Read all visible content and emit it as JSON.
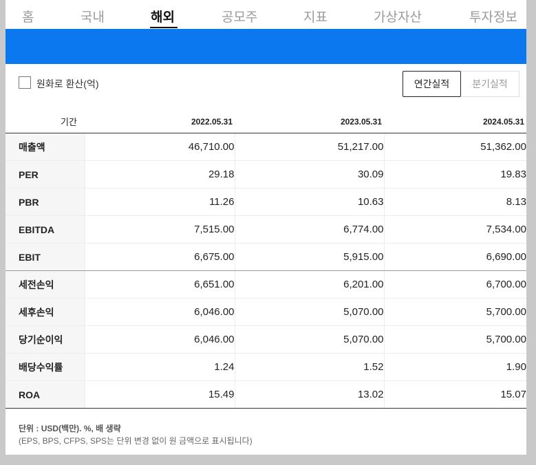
{
  "nav": {
    "items": [
      "홈",
      "국내",
      "해외",
      "공모주",
      "지표",
      "가상자산",
      "투자정보"
    ],
    "active_index": 2
  },
  "options": {
    "currency_checkbox_label": "원화로 환산(억)",
    "currency_checked": false,
    "annual_label": "연간실적",
    "quarter_label": "분기실적",
    "selected": "annual"
  },
  "table": {
    "header_label": "기간",
    "columns": [
      "2022.05.31",
      "2023.05.31",
      "2024.05.31"
    ],
    "rows": [
      {
        "label": "매출액",
        "values": [
          "46,710.00",
          "51,217.00",
          "51,362.00"
        ]
      },
      {
        "label": "PER",
        "values": [
          "29.18",
          "30.09",
          "19.83"
        ]
      },
      {
        "label": "PBR",
        "values": [
          "11.26",
          "10.63",
          "8.13"
        ]
      },
      {
        "label": "EBITDA",
        "values": [
          "7,515.00",
          "6,774.00",
          "7,534.00"
        ]
      },
      {
        "label": "EBIT",
        "values": [
          "6,675.00",
          "5,915.00",
          "6,690.00"
        ]
      },
      {
        "label": "세전손익",
        "values": [
          "6,651.00",
          "6,201.00",
          "6,700.00"
        ]
      },
      {
        "label": "세후손익",
        "values": [
          "6,046.00",
          "5,070.00",
          "5,700.00"
        ]
      },
      {
        "label": "당기순이익",
        "values": [
          "6,046.00",
          "5,070.00",
          "5,700.00"
        ]
      },
      {
        "label": "배당수익률",
        "values": [
          "1.24",
          "1.52",
          "1.90"
        ]
      },
      {
        "label": "ROA",
        "values": [
          "15.49",
          "13.02",
          "15.07"
        ]
      }
    ]
  },
  "footnote": {
    "unit_line": "단위 : USD(백만). %, 배 생략",
    "note_line": "(EPS, BPS, CFPS, SPS는 단위 변경 없이 원 금액으로 표시됩니다)"
  },
  "colors": {
    "accent_blue": "#0b78ef",
    "page_background": "#c9c9c9"
  }
}
